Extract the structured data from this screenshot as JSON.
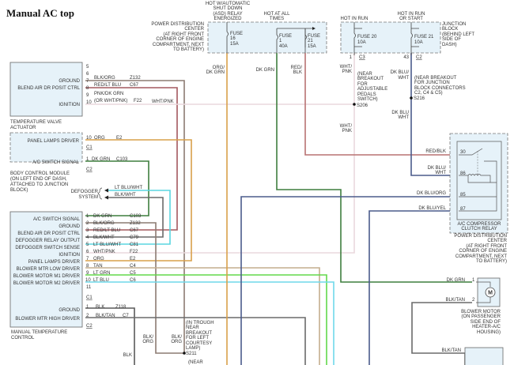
{
  "title": "Manual AC top",
  "wire_colors": {
    "org": "#d9a04a",
    "dk_grn": "#3f7f3f",
    "red_blk": "#b87272",
    "red_lt_blu": "#a3585e",
    "blk_org": "#8c7b72",
    "wht_pnk": "#ead9dd",
    "lt_blu_wht": "#5ad6e0",
    "blk_wht": "#6a6a6a",
    "tan": "#c4ad8e",
    "lt_grn": "#62d84a",
    "lt_blu": "#6fd9ea",
    "blk": "#5a5a5a",
    "dk_blu": "#4b5b8c",
    "box_fill": "#e6f2f9"
  },
  "tva": {
    "label": [
      "TEMPERATURE VALVE",
      "ACTUATOR"
    ],
    "pins": [
      {
        "num": "5"
      },
      {
        "num": "6"
      },
      {
        "num": "7",
        "name": "GROUND",
        "wire": "BLK/ORG",
        "circuit": "Z132"
      },
      {
        "num": "8",
        "name": "BLEND AIR DR POSIT CTRL",
        "wire": "RED/LT BLU",
        "circuit": "C67"
      },
      {
        "num": "9",
        "wire": "PNK/DK GRN"
      },
      {
        "num": "10",
        "name": "IGNITION",
        "wire": "(OR WHT/PNK)",
        "circuit": "F22",
        "wire_after": "WHT/PNK"
      }
    ]
  },
  "bcm": {
    "label": [
      "BODY CONTROL MODULE",
      "(ON LEFT END OF DASH,",
      "ATTACHED TO JUNCTION",
      "BLOCK)"
    ],
    "pins": [
      {
        "num": "10",
        "name": "PANEL LAMPS DRIVER",
        "wire": "ORG",
        "circuit": "E2",
        "connector": "C1"
      },
      {
        "num": "1",
        "name": "A/C SWITCH SIGNAL",
        "wire": "DK GRN",
        "circuit": "C103",
        "connector": "C2"
      }
    ]
  },
  "defogger": {
    "label": [
      "DEFOGGER",
      "SYSTEM"
    ],
    "wires": [
      "LT BLU/WHT",
      "BLK/WHT"
    ]
  },
  "mtc": {
    "label": [
      "MANUAL TEMPERATURE",
      "CONTROL"
    ],
    "pins": [
      {
        "num": "1",
        "name": "A/C SWITCH SIGNAL",
        "wire": "DK GRN",
        "circuit": "C103"
      },
      {
        "num": "2",
        "name": "GROUND",
        "wire": "BLK/ORG",
        "circuit": "Z132"
      },
      {
        "num": "3",
        "name": "BLEND AIR DR POSIT CTRL",
        "wire": "RED/LT BLU",
        "circuit": "C67"
      },
      {
        "num": "4",
        "name": "DEFOGGER RELAY OUTPUT",
        "wire": "BLK/WHT",
        "circuit": "C79"
      },
      {
        "num": "5",
        "name": "DEFOGGER SWITCH SENSE",
        "wire": "LT BLU/WHT",
        "circuit": "C81"
      },
      {
        "num": "6",
        "name": "IGNITION",
        "wire": "WHT/PNK",
        "circuit": "F22"
      },
      {
        "num": "7",
        "name": "PANEL LAMPS DRIVER",
        "wire": "ORG",
        "circuit": "E2"
      },
      {
        "num": "8",
        "name": "BLOWER MTR LOW DRIVER",
        "wire": "TAN",
        "circuit": "C4"
      },
      {
        "num": "9",
        "name": "BLOWER MOTOR M1 DRIVER",
        "wire": "LT GRN",
        "circuit": "C5"
      },
      {
        "num": "10",
        "name": "BLOWER MOTOR M2 DRIVER",
        "wire": "LT BLU",
        "circuit": "C6"
      },
      {
        "num": "11"
      }
    ],
    "connector1": "C1",
    "pins2": [
      {
        "num": "1",
        "name": "GROUND",
        "wire": "BLK",
        "circuit": "Z118"
      },
      {
        "num": "2",
        "name": "BLOWER MTR HIGH DRIVER",
        "wire": "BLK/TAN",
        "circuit": "C7"
      }
    ],
    "connector2": "C2"
  },
  "pdc_top": {
    "label": [
      "POWER DISTRIBUTION",
      "CENTER",
      "(AT RIGHT FRONT",
      "CORNER OF ENGINE",
      "COMPARTMENT, NEXT",
      "TO BATTERY)"
    ],
    "hot_asd": [
      "HOT W/AUTOMATIC",
      "SHUT DOWN",
      "(ASD) RELAY",
      "ENERGIZED"
    ],
    "hot_all": [
      "HOT AT ALL",
      "TIMES"
    ],
    "fuses": [
      {
        "name": "FUSE",
        "num": "16",
        "amps": "15A",
        "wire": [
          "ORG/",
          "DK GRN"
        ]
      },
      {
        "name": "FUSE",
        "num": "1",
        "amps": "40A",
        "wire": [
          "DK GRN"
        ]
      },
      {
        "name": "FUSE",
        "num": "21",
        "amps": "15A",
        "wire": [
          "RED/",
          "BLK"
        ]
      }
    ]
  },
  "junction_block": {
    "label": [
      "JUNCTION",
      "BLOCK",
      "(BEHIND LEFT",
      "SIDE OF",
      "DASH)"
    ],
    "hot_run": "HOT IN RUN",
    "hot_run_start": [
      "HOT IN RUN",
      "OR START"
    ],
    "fuses": [
      {
        "name": "FUSE 20",
        "amps": "10A",
        "pin": "1",
        "connector": "C3",
        "wire": [
          "WHT/",
          "PNK"
        ]
      },
      {
        "name": "FUSE 21",
        "amps": "10A",
        "pin": "43",
        "connector": "C2",
        "wire": [
          "DK BLU/",
          "WHT"
        ]
      }
    ]
  },
  "splices": {
    "s206": {
      "id": "S206",
      "note": [
        "(NEAR",
        "BREAKOUT",
        "FOR",
        "ADJUSTABLE",
        "PEDALS",
        "SWITCH)"
      ],
      "wire_below": [
        "WHT/",
        "PNK"
      ]
    },
    "s216": {
      "id": "S216",
      "note": [
        "(NEAR BREAKOUT",
        "FOR JUNCTION",
        "BLOCK CONNECTORS",
        "C2, C4 & C5)"
      ],
      "wire_below": [
        "DK BLU",
        "WHT"
      ]
    },
    "s211": {
      "id": "S211",
      "note": [
        "(IN TROUGH",
        "NEAR",
        "BREAKOUT",
        "FOR LEFT",
        "COURTESY",
        "LAMP)"
      ],
      "note_below": "(NEAR",
      "wire_a": [
        "BLK/",
        "ORG"
      ],
      "wire_b": [
        "BLK/",
        "ORG"
      ],
      "wire_blk": "BLK"
    }
  },
  "relay": {
    "label": [
      "A/C COMPRESSOR",
      "CLUTCH RELAY"
    ],
    "location": [
      "POWER DISTRIBUTION",
      "CENTER",
      "(AT RIGHT FRONT",
      "CORNER OF ENGINE",
      "COMPARTMENT, NEXT",
      "TO BATTERY)"
    ],
    "pins": [
      {
        "num": "30",
        "wire": "RED/BLK"
      },
      {
        "num": "86",
        "wire": [
          "DK BLU/",
          "WHT"
        ]
      },
      {
        "num": "85",
        "wire": "DK BLU/ORG"
      },
      {
        "num": "87",
        "wire": "DK BLU/YEL"
      }
    ]
  },
  "blower_motor": {
    "symbol": "M",
    "label": [
      "BLOWER MOTOR",
      "(ON PASSENGER",
      "SIDE END OF",
      "HEATER-A/C",
      "HOUSING)"
    ],
    "pins": [
      {
        "num": "1",
        "wire": "DK GRN"
      },
      {
        "num": "2",
        "wire": "BLK/TAN"
      }
    ],
    "wire_below": "BLK/TAN"
  }
}
